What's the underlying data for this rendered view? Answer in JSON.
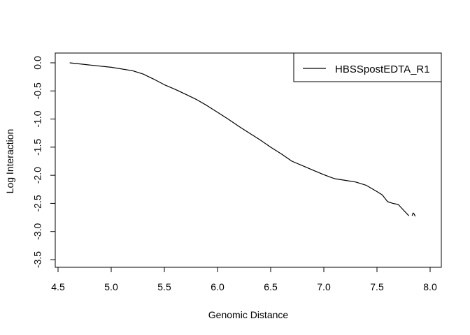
{
  "chart_data": {
    "type": "line",
    "title": "",
    "xlabel": "Genomic Distance",
    "ylabel": "Log Interaction",
    "xlim": [
      4.5,
      8.0
    ],
    "ylim": [
      -3.6,
      0.1
    ],
    "x_ticks": [
      "4.5",
      "5.0",
      "5.5",
      "6.0",
      "6.5",
      "7.0",
      "7.5",
      "8.0"
    ],
    "y_ticks": [
      "0.0",
      "-0.5",
      "-1.0",
      "-1.5",
      "-2.0",
      "-2.5",
      "-3.0",
      "-3.5"
    ],
    "grid": false,
    "legend_position": "top-right",
    "series": [
      {
        "name": "HBSSpostEDTA_R1",
        "color": "#000000",
        "x": [
          4.61,
          4.8,
          5.0,
          5.2,
          5.3,
          5.4,
          5.5,
          5.6,
          5.7,
          5.8,
          5.9,
          6.0,
          6.1,
          6.2,
          6.3,
          6.4,
          6.5,
          6.6,
          6.7,
          6.8,
          6.9,
          7.0,
          7.1,
          7.2,
          7.3,
          7.4,
          7.5,
          7.55,
          7.6,
          7.65,
          7.7,
          7.75,
          7.8
        ],
        "y": [
          0.0,
          -0.04,
          -0.08,
          -0.14,
          -0.2,
          -0.29,
          -0.39,
          -0.47,
          -0.56,
          -0.65,
          -0.76,
          -0.88,
          -1.0,
          -1.13,
          -1.25,
          -1.37,
          -1.5,
          -1.62,
          -1.75,
          -1.83,
          -1.91,
          -1.99,
          -2.06,
          -2.09,
          -2.12,
          -2.18,
          -2.29,
          -2.35,
          -2.47,
          -2.5,
          -2.52,
          -2.62,
          -2.72
        ]
      },
      {
        "name": "",
        "color": "#000000",
        "x": [
          7.83,
          7.84,
          7.85,
          7.86
        ],
        "y": [
          -2.72,
          -2.67,
          -2.69,
          -2.73
        ]
      }
    ]
  }
}
